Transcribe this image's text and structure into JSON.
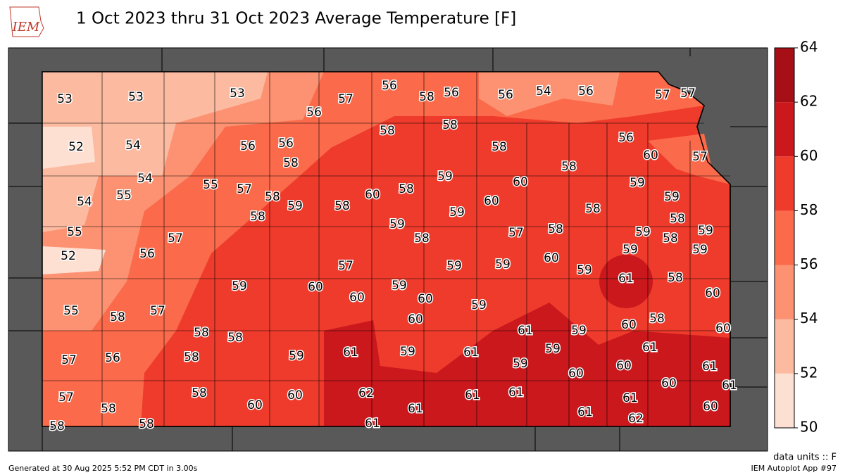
{
  "map": {
    "logo": "IEM",
    "title": "1 Oct 2023 thru 31 Oct 2023 Average Temperature [F]",
    "stations": [
      53,
      53,
      53,
      56,
      57,
      56,
      58,
      56,
      56,
      54,
      56,
      57,
      57,
      52,
      54,
      56,
      56,
      58,
      58,
      58,
      58,
      56,
      60,
      57,
      58,
      54,
      54,
      55,
      55,
      57,
      58,
      58,
      59,
      58,
      60,
      58,
      59,
      60,
      60,
      59,
      59,
      58,
      59,
      59,
      58,
      55,
      57,
      58,
      57,
      58,
      59,
      58,
      59,
      59,
      59,
      52,
      56,
      57,
      59,
      59,
      60,
      59,
      61,
      58,
      60,
      59,
      60,
      59,
      60,
      60,
      59,
      55,
      58,
      57,
      58,
      58,
      60,
      61,
      59,
      60,
      58,
      60,
      57,
      56,
      58,
      59,
      61,
      59,
      61,
      59,
      59,
      61,
      60,
      61,
      60,
      61,
      60,
      57,
      58,
      58,
      60,
      60,
      62,
      61,
      61,
      61,
      61,
      61,
      60,
      58,
      58,
      61,
      62
    ],
    "colorbar": {
      "ticks": [
        50,
        52,
        54,
        56,
        58,
        60,
        62,
        64
      ],
      "colors": [
        "#fee0d2",
        "#fcbba1",
        "#fc9272",
        "#fb6a4a",
        "#ef3b2c",
        "#cb181d",
        "#a50f15"
      ]
    },
    "units_note": "data units :: F",
    "footer_left": "Generated at 30 Aug 2025 5:52 PM CDT in 3.00s",
    "footer_right": "IEM Autoplot App #97"
  }
}
